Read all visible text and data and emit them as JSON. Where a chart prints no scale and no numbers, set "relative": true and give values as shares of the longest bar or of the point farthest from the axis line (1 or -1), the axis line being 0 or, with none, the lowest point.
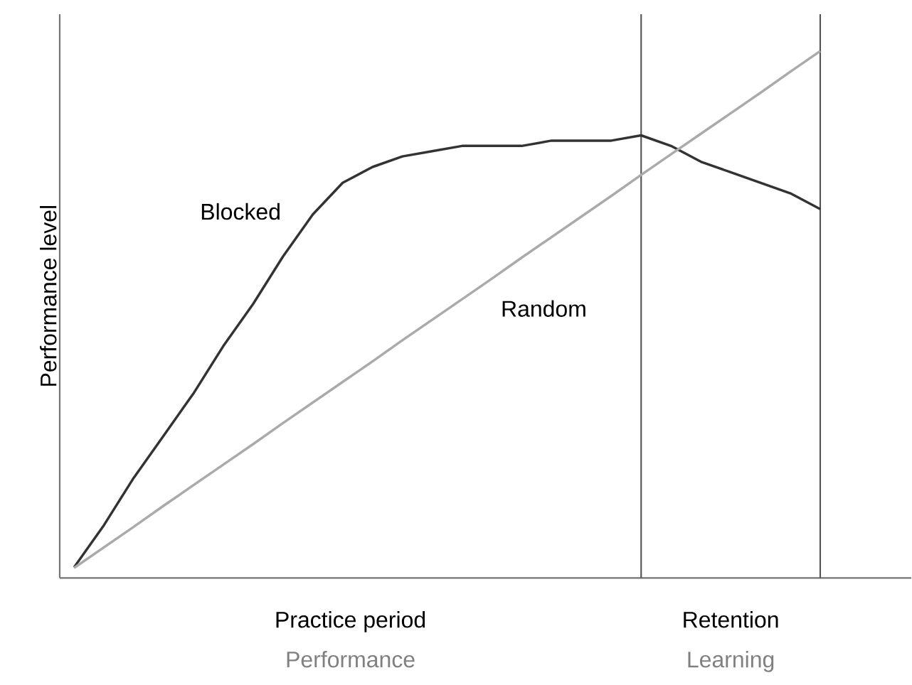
{
  "chart_data": {
    "type": "line",
    "relative": true,
    "ylabel": "Performance level",
    "line_style": "solid",
    "categories": [
      null,
      null,
      null,
      null,
      null,
      null,
      null,
      null,
      null,
      null,
      null,
      null,
      null,
      null,
      null,
      null,
      null,
      null,
      null,
      null,
      null,
      null,
      null,
      null,
      null,
      null
    ],
    "series": [
      {
        "name": "Blocked",
        "color": "#333333",
        "values": [
          0.02,
          0.1,
          0.19,
          0.27,
          0.35,
          0.44,
          0.52,
          0.61,
          0.69,
          0.75,
          0.78,
          0.8,
          0.81,
          0.82,
          0.82,
          0.82,
          0.83,
          0.83,
          0.83,
          0.84,
          0.82,
          0.79,
          0.77,
          0.75,
          0.73,
          0.7
        ]
      },
      {
        "name": "Random",
        "color": "#aaaaaa",
        "values": [
          0.019,
          0.058,
          0.097,
          0.137,
          0.176,
          0.215,
          0.254,
          0.294,
          0.333,
          0.372,
          0.411,
          0.451,
          0.49,
          0.529,
          0.568,
          0.608,
          0.647,
          0.686,
          0.725,
          0.765,
          0.804,
          0.843,
          0.882,
          0.921,
          0.961,
          1.0
        ]
      }
    ],
    "annotations": [
      "Practice period",
      "Performance",
      "Retention",
      "Learning"
    ]
  }
}
